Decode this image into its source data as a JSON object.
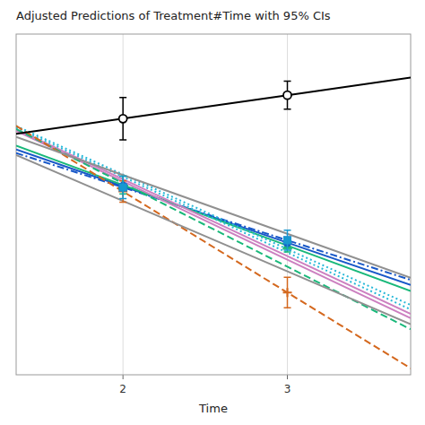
{
  "chart_data": {
    "type": "line",
    "title": "Adjusted Predictions of Treatment#Time with 95% CIs",
    "x_label": "Time",
    "xlim": [
      1.35,
      3.75
    ],
    "xticks": [
      2,
      3
    ],
    "ylim": [
      -1.8,
      1.1
    ],
    "yticks": [],
    "grid": true,
    "tick_labels": "x",
    "series": [
      {
        "type": "line",
        "color": "#000000",
        "line_style": "solid",
        "marker": "open-circle",
        "x": [
          1.35,
          2,
          3,
          3.75
        ],
        "values": [
          0.25,
          0.38,
          0.58,
          0.73
        ],
        "point_x": [
          2,
          3
        ],
        "point_values": [
          0.38,
          0.58
        ],
        "errors": [
          0.18,
          0.12
        ]
      },
      {
        "type": "line",
        "color": "#909090",
        "line_style": "solid",
        "x": [
          1.35,
          2,
          3,
          3.75
        ],
        "values": [
          0.225,
          -0.1,
          -0.6,
          -0.975
        ]
      },
      {
        "type": "line",
        "color": "#909090",
        "line_style": "solid",
        "x": [
          1.35,
          2,
          3,
          3.75
        ],
        "values": [
          0.07,
          -0.32,
          -0.92,
          -1.37
        ]
      },
      {
        "type": "line",
        "color": "#d4681e",
        "line_style": "dashed",
        "marker": "plus",
        "x": [
          1.35,
          2,
          3,
          3.75
        ],
        "values": [
          0.319,
          -0.24,
          -1.1,
          -1.745
        ],
        "point_x": [
          2,
          3
        ],
        "point_values": [
          -0.24,
          -1.1
        ],
        "errors": [
          0.09,
          0.13
        ]
      },
      {
        "type": "line",
        "color": "#19b87a",
        "line_style": "dashed",
        "x": [
          1.35,
          2,
          3,
          3.75
        ],
        "values": [
          0.2915,
          -0.17,
          -0.88,
          -1.4125
        ]
      },
      {
        "type": "line",
        "color": "#cc80c0",
        "line_style": "solid",
        "x": [
          1.35,
          2,
          3,
          3.75
        ],
        "values": [
          0.27725,
          -0.155,
          -0.82,
          -1.31875
        ]
      },
      {
        "type": "line",
        "color": "#cc80c0",
        "line_style": "solid",
        "x": [
          1.35,
          2,
          3,
          3.75
        ],
        "values": [
          0.29075,
          -0.135,
          -0.79,
          -1.28125
        ]
      },
      {
        "type": "line",
        "color": "#28b8d8",
        "line_style": "dotted",
        "x": [
          1.35,
          2,
          3,
          3.75
        ],
        "values": [
          0.30425,
          -0.115,
          -0.76,
          -1.24375
        ]
      },
      {
        "type": "line",
        "color": "#28b8d8",
        "line_style": "dotted",
        "x": [
          1.35,
          2,
          3,
          3.75
        ],
        "values": [
          0.31775,
          -0.095,
          -0.73,
          -1.20625
        ]
      },
      {
        "type": "line",
        "color": "#19b87a",
        "line_style": "solid",
        "marker": "triangle",
        "x": [
          1.35,
          2,
          3,
          3.75
        ],
        "values": [
          0.14975,
          -0.185,
          -0.7,
          -1.08625
        ],
        "point_x": [
          2,
          3
        ],
        "point_values": [
          -0.185,
          -0.7
        ],
        "errors": [
          0.075,
          0.055
        ]
      },
      {
        "type": "line",
        "color": "#1858c8",
        "line_style": "solid",
        "marker": "circle",
        "x": [
          1.35,
          2,
          3,
          3.75
        ],
        "values": [
          0.117,
          -0.195,
          -0.675,
          -1.035
        ],
        "point_x": [
          2,
          3
        ],
        "point_values": [
          -0.195,
          -0.675
        ]
      },
      {
        "type": "line",
        "color": "#1858c8",
        "line_style": "dashdot",
        "marker": "square",
        "x": [
          1.35,
          2,
          3,
          3.75
        ],
        "values": [
          0.0875,
          -0.205,
          -0.655,
          -0.9925
        ],
        "point_x": [
          2,
          3
        ],
        "point_values": [
          -0.205,
          -0.655
        ]
      },
      {
        "type": "scatter",
        "color": "#1898d0",
        "marker": "square",
        "point_x": [
          2,
          3
        ],
        "point_values": [
          -0.205,
          -0.655
        ],
        "errors": [
          0.095,
          0.085
        ]
      }
    ]
  }
}
